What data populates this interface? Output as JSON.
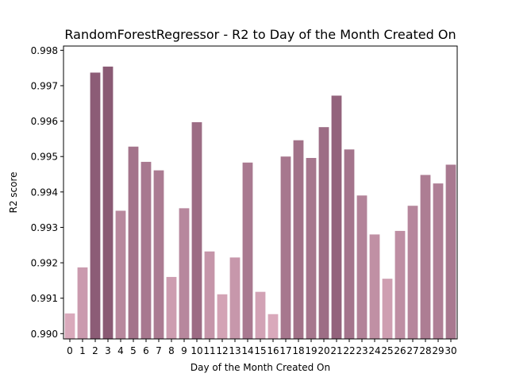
{
  "chart_data": {
    "type": "bar",
    "title": "RandomForestRegressor - R2 to Day of the Month Created On",
    "xlabel": "Day of the Month Created On",
    "ylabel": "R2 score",
    "ylim": [
      0.98985,
      0.99812
    ],
    "yticks": [
      "0.990",
      "0.991",
      "0.992",
      "0.993",
      "0.994",
      "0.995",
      "0.996",
      "0.997",
      "0.998"
    ],
    "ytick_values": [
      0.99,
      0.991,
      0.992,
      0.993,
      0.994,
      0.995,
      0.996,
      0.997,
      0.998
    ],
    "categories": [
      "0",
      "1",
      "2",
      "3",
      "4",
      "5",
      "6",
      "7",
      "8",
      "9",
      "10",
      "11",
      "12",
      "13",
      "14",
      "15",
      "16",
      "17",
      "18",
      "19",
      "20",
      "21",
      "22",
      "23",
      "24",
      "25",
      "26",
      "27",
      "28",
      "29",
      "30"
    ],
    "values": [
      0.99057,
      0.99187,
      0.99737,
      0.99754,
      0.99347,
      0.99528,
      0.99485,
      0.99461,
      0.9916,
      0.99354,
      0.99597,
      0.99232,
      0.99111,
      0.99215,
      0.99483,
      0.99118,
      0.99055,
      0.995,
      0.99546,
      0.99496,
      0.99583,
      0.99672,
      0.9952,
      0.9939,
      0.9928,
      0.99155,
      0.9929,
      0.99361,
      0.99448,
      0.99424,
      0.99477
    ],
    "color_low": "#d9a9bb",
    "color_high": "#8a5a74",
    "grid": false,
    "legend": "none"
  }
}
